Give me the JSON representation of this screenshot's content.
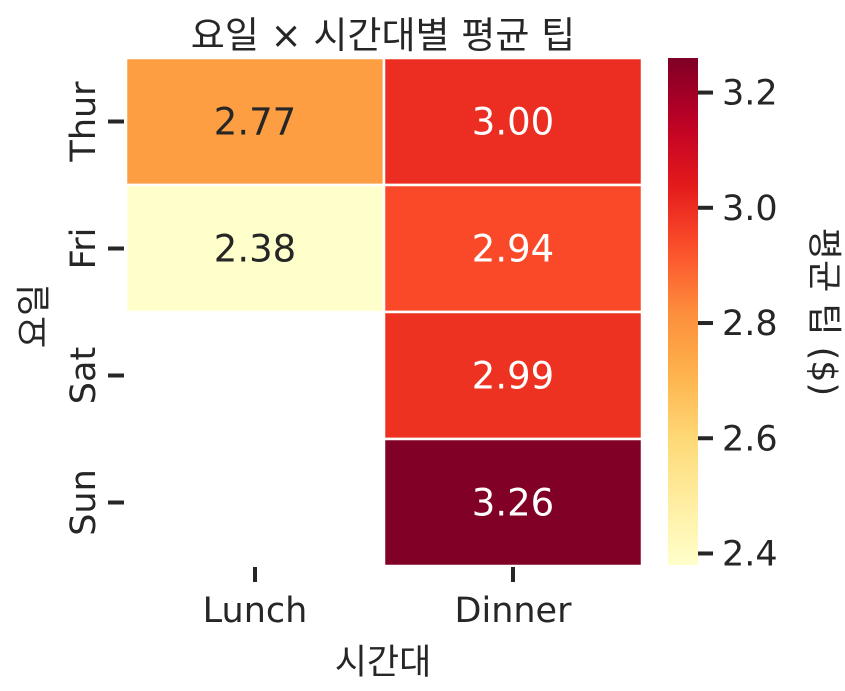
{
  "chart_data": {
    "type": "heatmap",
    "title": "요일 × 시간대별 평균 팁",
    "xlabel": "시간대",
    "ylabel": "요일",
    "x_categories": [
      "Lunch",
      "Dinner"
    ],
    "y_categories": [
      "Thur",
      "Fri",
      "Sat",
      "Sun"
    ],
    "cells": [
      {
        "day": "Thur",
        "time": "Lunch",
        "value": 2.77,
        "label": "2.77"
      },
      {
        "day": "Thur",
        "time": "Dinner",
        "value": 3.0,
        "label": "3.00"
      },
      {
        "day": "Fri",
        "time": "Lunch",
        "value": 2.38,
        "label": "2.38"
      },
      {
        "day": "Fri",
        "time": "Dinner",
        "value": 2.94,
        "label": "2.94"
      },
      {
        "day": "Sat",
        "time": "Dinner",
        "value": 2.99,
        "label": "2.99"
      },
      {
        "day": "Sun",
        "time": "Dinner",
        "value": 3.26,
        "label": "3.26"
      }
    ],
    "colorbar": {
      "label": "평균 팁 ($)",
      "colormap": "YlOrRd",
      "vmin": 2.38,
      "vmax": 3.26,
      "ticks": [
        2.4,
        2.6,
        2.8,
        3.0,
        3.2
      ],
      "tick_labels": [
        "2.4",
        "2.6",
        "2.8",
        "3.0",
        "3.2"
      ]
    },
    "grid": false
  }
}
